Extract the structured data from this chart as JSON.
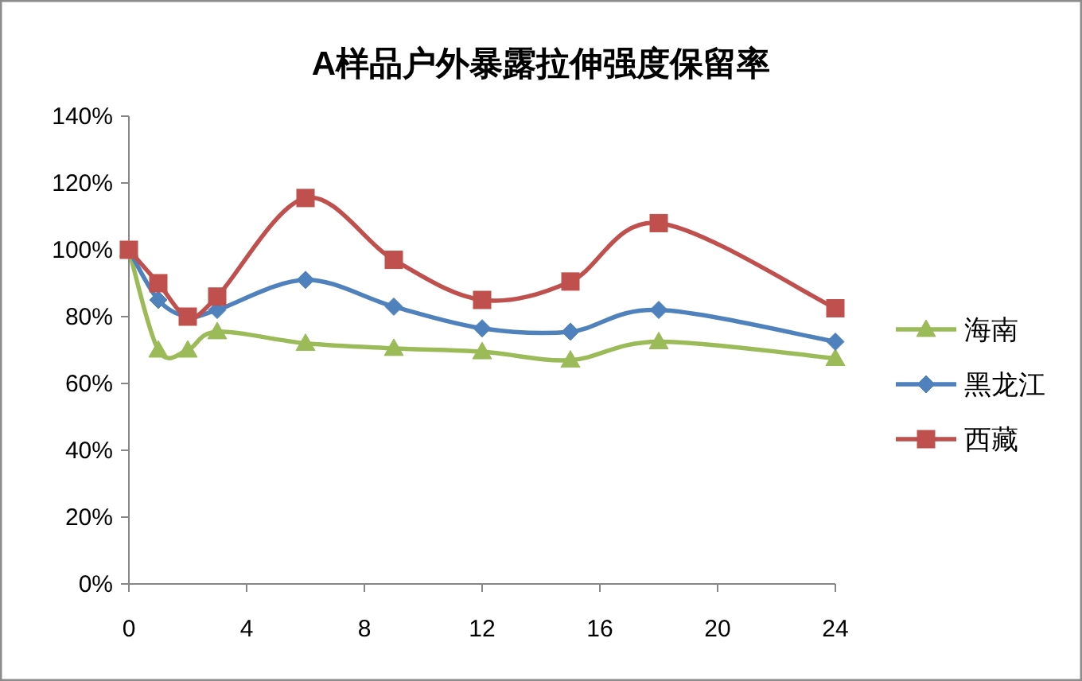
{
  "chart_data": {
    "type": "line",
    "title": "A样品户外暴露拉伸强度保留率",
    "x": [
      0,
      1,
      2,
      3,
      6,
      9,
      12,
      15,
      18,
      24
    ],
    "series": [
      {
        "name": "海南",
        "color": "#9bbb59",
        "marker": "triangle",
        "values": [
          100,
          70,
          70,
          75.5,
          72,
          70.5,
          69.5,
          67,
          72.5,
          67.5
        ]
      },
      {
        "name": "黑龙江",
        "color": "#4f81bd",
        "marker": "diamond",
        "values": [
          100,
          85,
          80,
          82,
          91,
          83,
          76.5,
          75.5,
          82,
          72.5
        ]
      },
      {
        "name": "西藏",
        "color": "#c0504d",
        "marker": "square",
        "values": [
          100,
          90,
          80,
          86,
          115.5,
          97,
          85,
          90.5,
          108,
          82.5
        ]
      }
    ],
    "xlim": [
      0,
      24
    ],
    "xticks": [
      0,
      4,
      8,
      12,
      16,
      20,
      24
    ],
    "ylim": [
      0,
      140
    ],
    "yticks": [
      {
        "value": 0,
        "label": "0%"
      },
      {
        "value": 20,
        "label": "20%"
      },
      {
        "value": 40,
        "label": "40%"
      },
      {
        "value": 60,
        "label": "60%"
      },
      {
        "value": 80,
        "label": "80%"
      },
      {
        "value": 100,
        "label": "100%"
      },
      {
        "value": 120,
        "label": "120%"
      },
      {
        "value": 140,
        "label": "140%"
      }
    ],
    "legend": "right"
  }
}
